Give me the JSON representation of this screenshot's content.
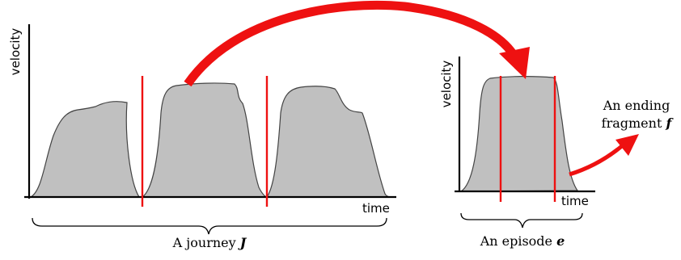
{
  "journey": {
    "y_axis_label": "velocity",
    "x_axis_label": "time",
    "caption_prefix": "A journey ",
    "caption_variable": "J"
  },
  "episode": {
    "y_axis_label": "velocity",
    "x_axis_label": "time",
    "caption_prefix": "An episode ",
    "caption_variable": "e"
  },
  "fragment": {
    "label_line1": "An ending",
    "label_line2_prefix": "fragment ",
    "label_variable": "f"
  },
  "colors": {
    "fill": "#c0c0c0",
    "outline": "#444444",
    "highlight": "#ee1111",
    "axis": "#000000"
  }
}
